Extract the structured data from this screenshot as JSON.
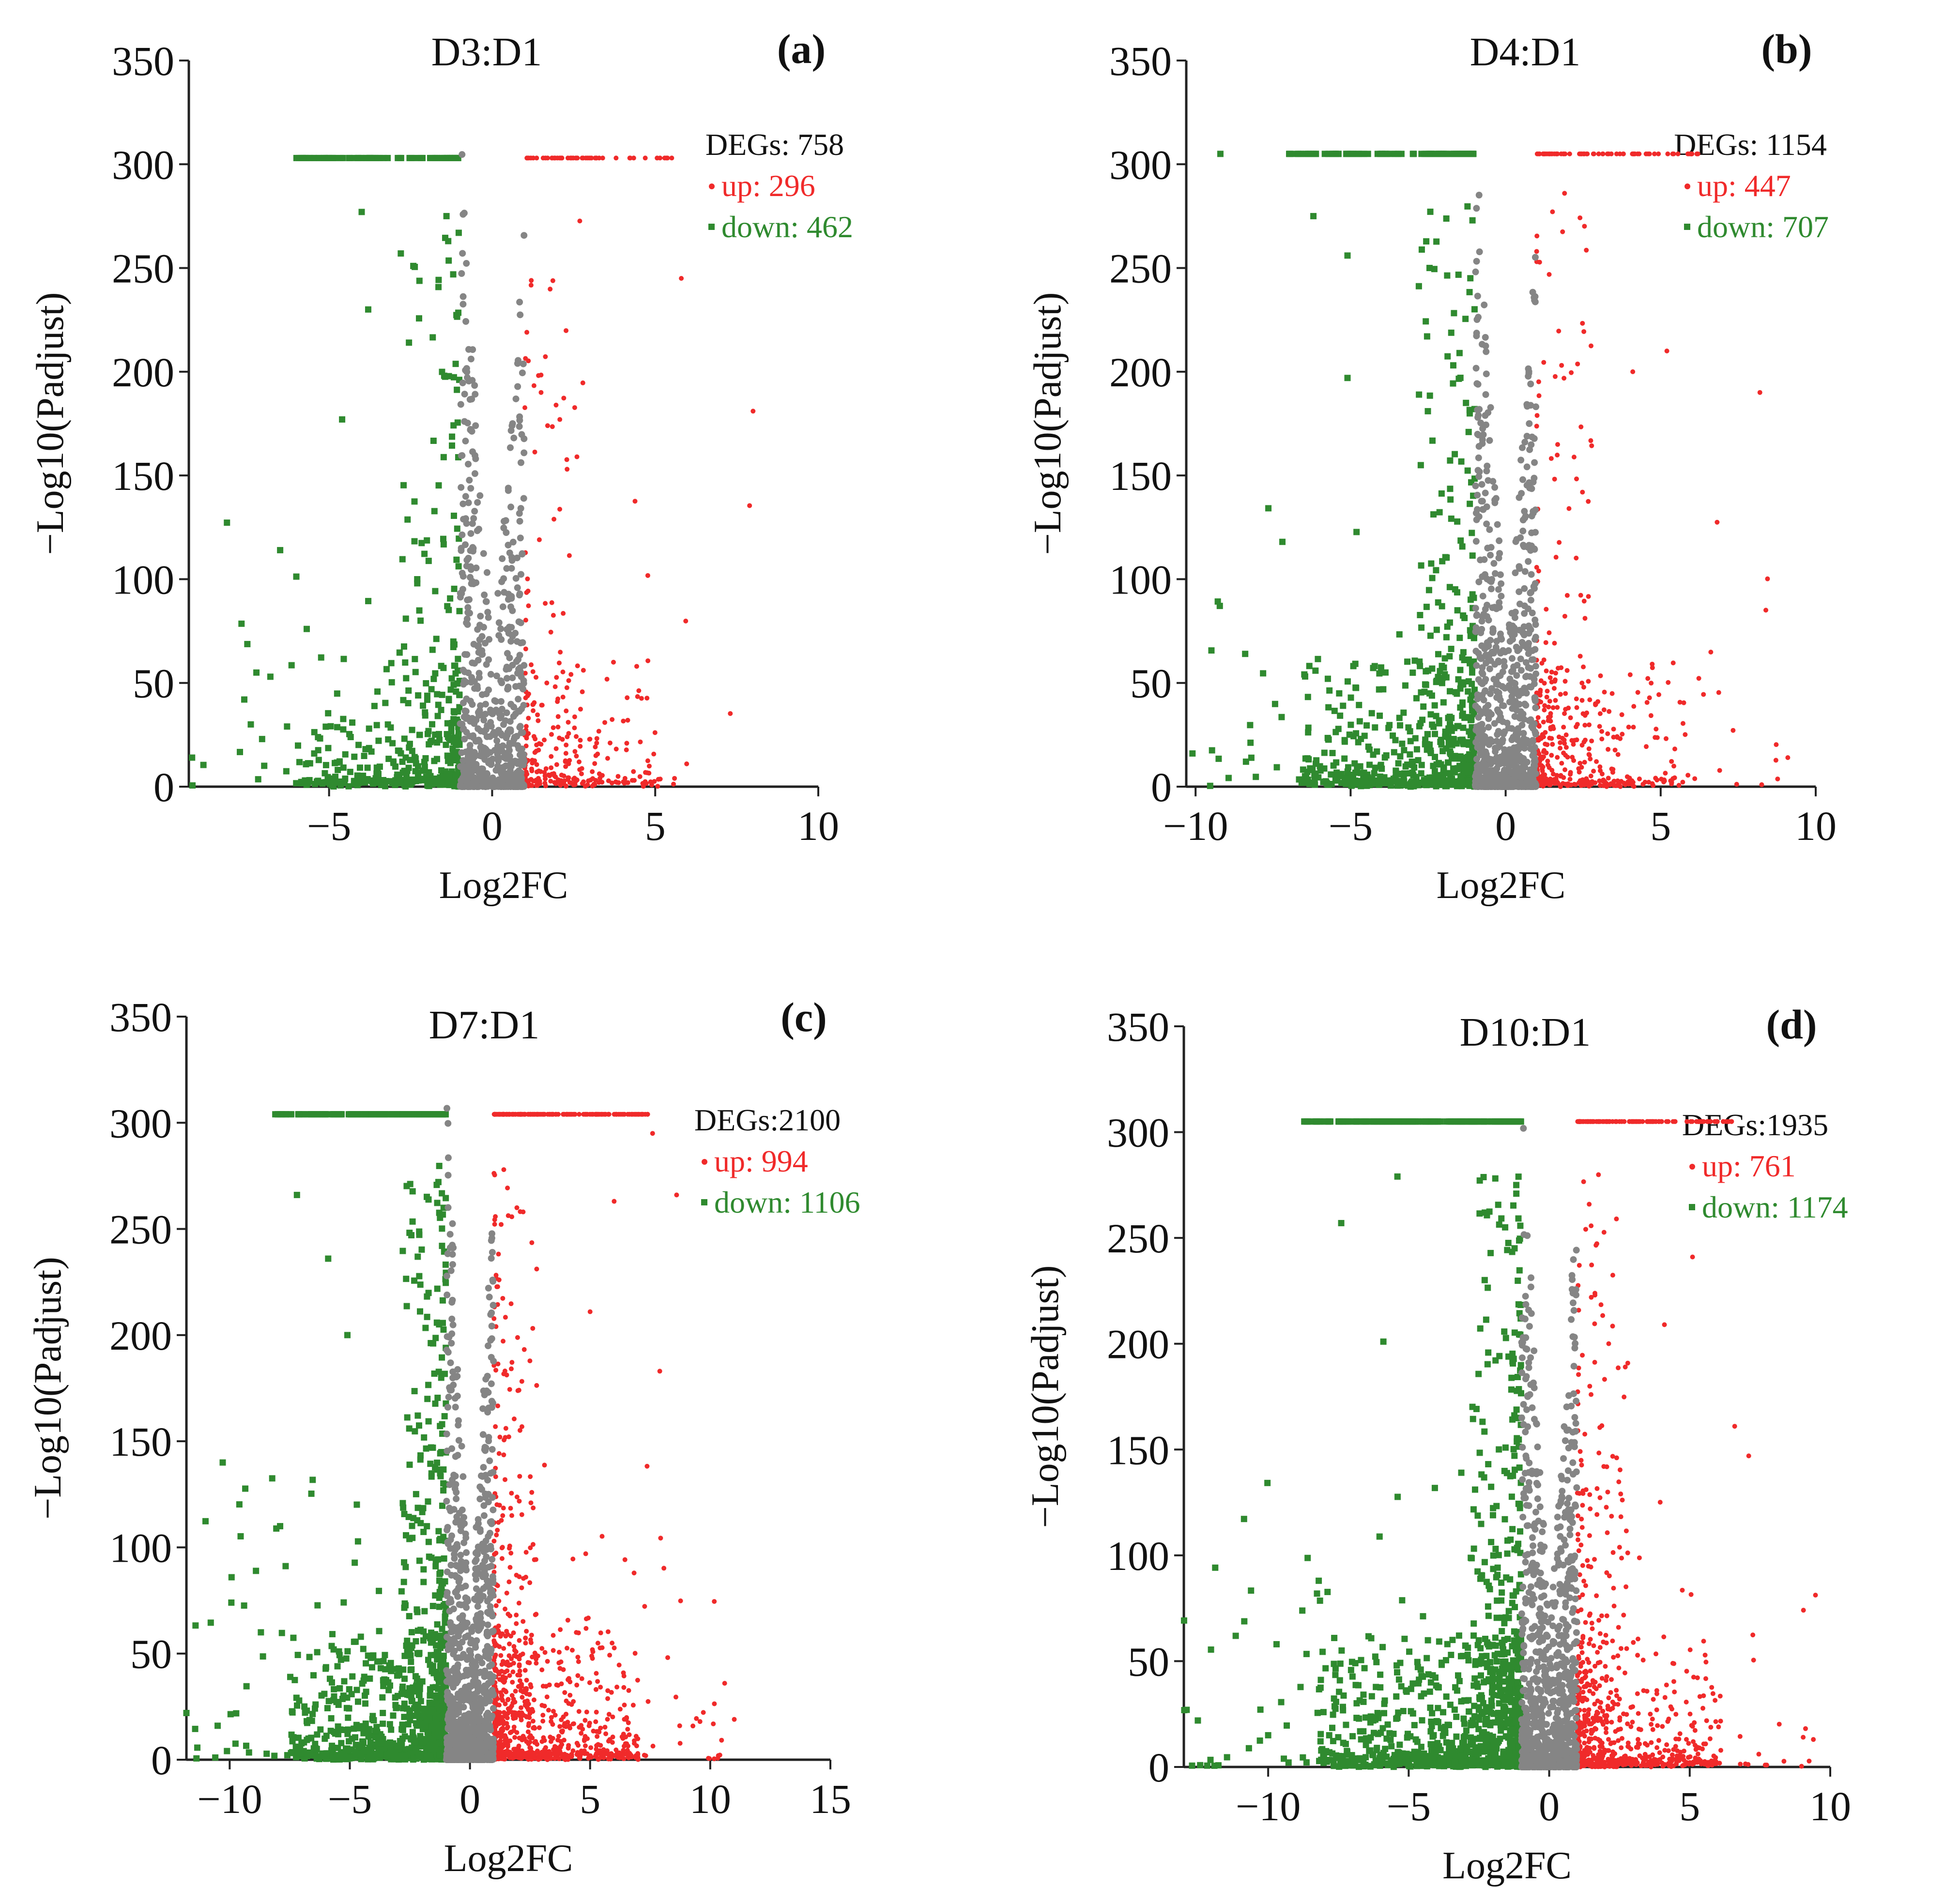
{
  "colors": {
    "up": "#f02a2a",
    "down": "#2f8a2f",
    "ns": "#858585",
    "axis": "#222222"
  },
  "chart_data": [
    {
      "type": "scatter",
      "panel": "(a)",
      "title": "D3:D1",
      "xlabel": "Log2FC",
      "ylabel": "−Log10(Padjust)",
      "xlim": [
        -9.3,
        10
      ],
      "ylim": [
        0,
        350
      ],
      "xticks": [
        -5,
        0,
        5,
        10
      ],
      "xtick_labels": [
        "−5",
        "0",
        "5",
        "10"
      ],
      "yticks": [
        0,
        50,
        100,
        150,
        200,
        250,
        300,
        350
      ],
      "degs_label": "DEGs: 758",
      "up_label": "up: 296",
      "down_label": "down: 462",
      "series": [
        {
          "name": "up",
          "marker": "dot",
          "x_range": [
            1,
            8
          ],
          "cap": 303,
          "count": 296,
          "highlights": [
            [
              2.1,
              303
            ],
            [
              2.4,
              303
            ],
            [
              1.7,
              303
            ],
            [
              1.2,
              244
            ],
            [
              5.8,
              245
            ],
            [
              8.0,
              181
            ],
            [
              1.5,
              190
            ],
            [
              2.6,
              159
            ],
            [
              1.7,
              174
            ]
          ]
        },
        {
          "name": "down",
          "marker": "square",
          "x_range": [
            -9.3,
            -1
          ],
          "cap": 303,
          "count": 462,
          "highlights": [
            [
              -5.8,
              303
            ],
            [
              -4.9,
              303
            ],
            [
              -3.5,
              303
            ],
            [
              -1.9,
              303
            ],
            [
              -4.0,
              277
            ],
            [
              -1.4,
              275
            ],
            [
              -2.8,
              257
            ],
            [
              -3.8,
              230
            ],
            [
              -4.6,
              177
            ],
            [
              -6.5,
              114
            ],
            [
              -9.2,
              14
            ],
            [
              -7.6,
              42
            ],
            [
              -7.4,
              30
            ],
            [
              -6.8,
              53
            ]
          ]
        },
        {
          "name": "ns",
          "marker": "dot",
          "x_range": [
            -1,
            1
          ],
          "count": 700
        }
      ]
    },
    {
      "type": "scatter",
      "panel": "(b)",
      "title": "D4:D1",
      "xlabel": "Log2FC",
      "ylabel": "−Log10(Padjust)",
      "xlim": [
        -10.3,
        10
      ],
      "ylim": [
        0,
        350
      ],
      "xticks": [
        -10,
        -5,
        0,
        5,
        10
      ],
      "xtick_labels": [
        "−10",
        "−5",
        "0",
        "5",
        "10"
      ],
      "yticks": [
        0,
        50,
        100,
        150,
        200,
        250,
        300,
        350
      ],
      "degs_label": "DEGs: 1154",
      "up_label": "up: 447",
      "down_label": "down: 707",
      "series": [
        {
          "name": "up",
          "marker": "dot",
          "x_range": [
            1,
            9.2
          ],
          "cap": 305,
          "count": 447,
          "highlights": [
            [
              4.8,
              305
            ],
            [
              6.2,
              305
            ],
            [
              1.5,
              305
            ],
            [
              1.9,
              286
            ],
            [
              8.2,
              190
            ],
            [
              5.2,
              210
            ],
            [
              4.1,
              200
            ],
            [
              9.1,
              14
            ]
          ]
        },
        {
          "name": "down",
          "marker": "square",
          "x_range": [
            -10.3,
            -1
          ],
          "cap": 305,
          "count": 707,
          "highlights": [
            [
              -9.2,
              305
            ],
            [
              -6.3,
              305
            ],
            [
              -4.0,
              305
            ],
            [
              -6.2,
              275
            ],
            [
              -5.1,
              256
            ],
            [
              -7.2,
              118
            ],
            [
              -8.4,
              64
            ],
            [
              -10.1,
              16
            ],
            [
              -5.1,
              197
            ]
          ]
        },
        {
          "name": "ns",
          "marker": "dot",
          "x_range": [
            -1,
            1
          ],
          "count": 900
        }
      ]
    },
    {
      "type": "scatter",
      "panel": "(c)",
      "title": "D7:D1",
      "xlabel": "Log2FC",
      "ylabel": "−Log10(Padjust)",
      "xlim": [
        -11.8,
        15
      ],
      "ylim": [
        0,
        350
      ],
      "xticks": [
        -10,
        -5,
        0,
        5,
        10,
        15
      ],
      "xtick_labels": [
        "−10",
        "−5",
        "0",
        "5",
        "10",
        "15"
      ],
      "yticks": [
        0,
        50,
        100,
        150,
        200,
        250,
        300,
        350
      ],
      "degs_label": "DEGs:2100",
      "up_label": "up: 994",
      "down_label": "down: 1106",
      "series": [
        {
          "name": "up",
          "marker": "dot",
          "x_range": [
            1,
            11
          ],
          "cap": 304,
          "count": 994,
          "highlights": [
            [
              6.1,
              304
            ],
            [
              2.8,
              304
            ],
            [
              7.6,
              295
            ],
            [
              8.6,
              266
            ],
            [
              6.0,
              263
            ],
            [
              7.9,
              183
            ],
            [
              5.0,
              211
            ],
            [
              10.6,
              36
            ],
            [
              11.0,
              19
            ]
          ]
        },
        {
          "name": "down",
          "marker": "square",
          "x_range": [
            -11.8,
            -1
          ],
          "cap": 304,
          "count": 1106,
          "highlights": [
            [
              -8.1,
              304
            ],
            [
              -6.5,
              304
            ],
            [
              -4.6,
              304
            ],
            [
              -7.2,
              266
            ],
            [
              -5.9,
              236
            ],
            [
              -7.9,
              110
            ],
            [
              -8.7,
              60
            ],
            [
              -10.5,
              16
            ],
            [
              -11.8,
              22
            ],
            [
              -5.1,
              200
            ]
          ]
        },
        {
          "name": "ns",
          "marker": "dot",
          "x_range": [
            -1,
            1
          ],
          "count": 1100
        }
      ]
    },
    {
      "type": "scatter",
      "panel": "(d)",
      "title": "D10:D1",
      "xlabel": "Log2FC",
      "ylabel": "−Log10(Padjust)",
      "xlim": [
        -13,
        10
      ],
      "ylim": [
        0,
        350
      ],
      "xticks": [
        -10,
        -5,
        0,
        5,
        10
      ],
      "xtick_labels": [
        "−10",
        "−5",
        "0",
        "5",
        "10"
      ],
      "yticks": [
        0,
        50,
        100,
        150,
        200,
        250,
        300,
        350
      ],
      "degs_label": "DEGs:1935",
      "up_label": "up: 761",
      "down_label": "down: 1174",
      "series": [
        {
          "name": "up",
          "marker": "dot",
          "x_range": [
            1,
            9.5
          ],
          "cap": 305,
          "count": 761,
          "highlights": [
            [
              3.8,
              305
            ],
            [
              1.1,
              305
            ],
            [
              6.6,
              161
            ],
            [
              7.1,
              147
            ],
            [
              5.1,
              241
            ],
            [
              4.1,
              209
            ],
            [
              9.4,
              13
            ]
          ]
        },
        {
          "name": "down",
          "marker": "square",
          "x_range": [
            -13,
            -1
          ],
          "cap": 305,
          "count": 1174,
          "highlights": [
            [
              -8.0,
              305
            ],
            [
              -6.1,
              305
            ],
            [
              -3.0,
              305
            ],
            [
              -7.4,
              257
            ],
            [
              -5.4,
              279
            ],
            [
              -12.9,
              27
            ],
            [
              -8.2,
              88
            ],
            [
              -10.0,
              15
            ],
            [
              -5.9,
              201
            ]
          ]
        },
        {
          "name": "ns",
          "marker": "dot",
          "x_range": [
            -1,
            1
          ],
          "count": 1000
        }
      ]
    }
  ]
}
